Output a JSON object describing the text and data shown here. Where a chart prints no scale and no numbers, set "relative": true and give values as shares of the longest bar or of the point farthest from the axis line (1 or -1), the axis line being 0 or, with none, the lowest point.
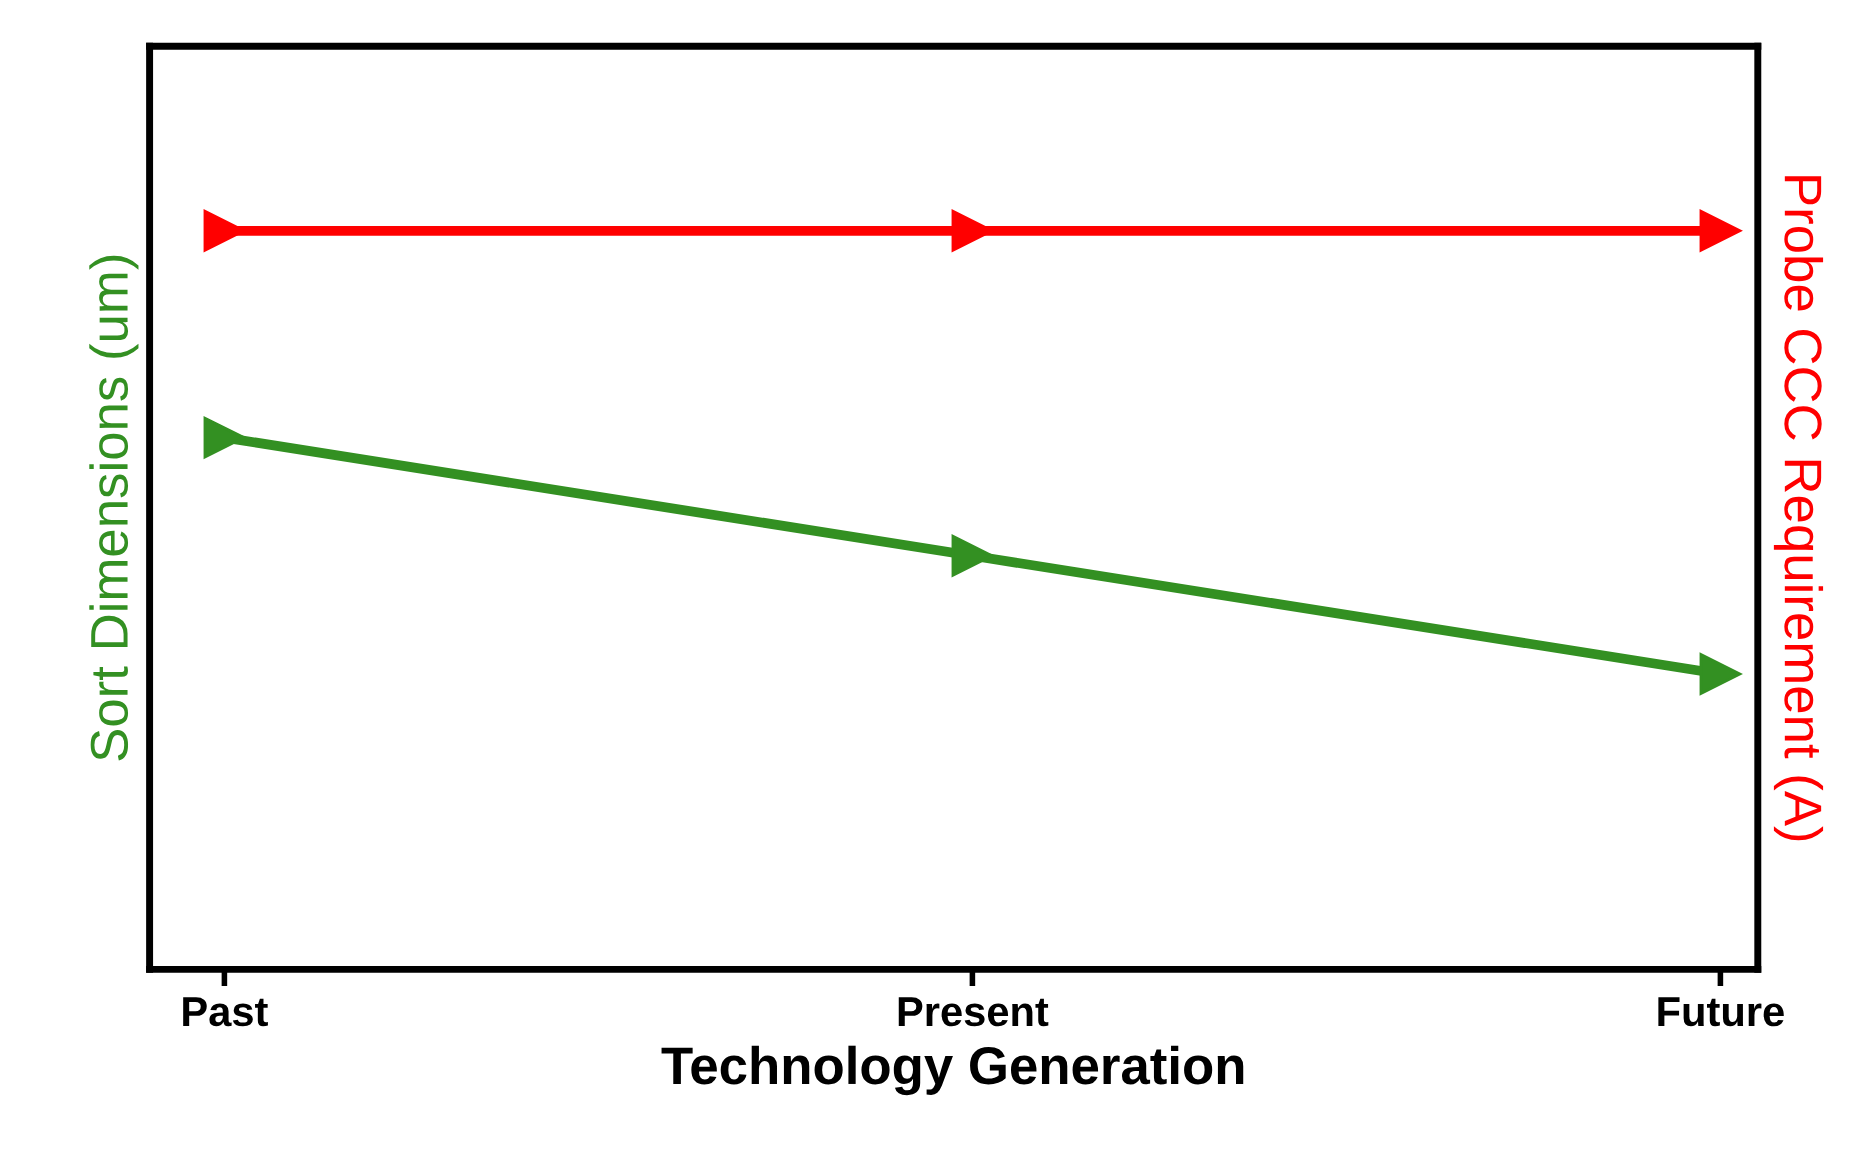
{
  "chart_data": {
    "type": "line",
    "relative": true,
    "xlabel": "Technology Generation",
    "ylabel": "Sort Dimensions (um)",
    "y2label": "Probe CCC Requirement (A)",
    "categories": [
      "Past",
      "Present",
      "Future"
    ],
    "series": [
      {
        "color": "#ff0000",
        "values": [
          1,
          1,
          1
        ]
      },
      {
        "color": "#339022",
        "values": [
          0.72,
          0.56,
          0.4
        ]
      }
    ],
    "marker": "triangle",
    "line_style": "solid",
    "grid": false,
    "legend": false
  }
}
